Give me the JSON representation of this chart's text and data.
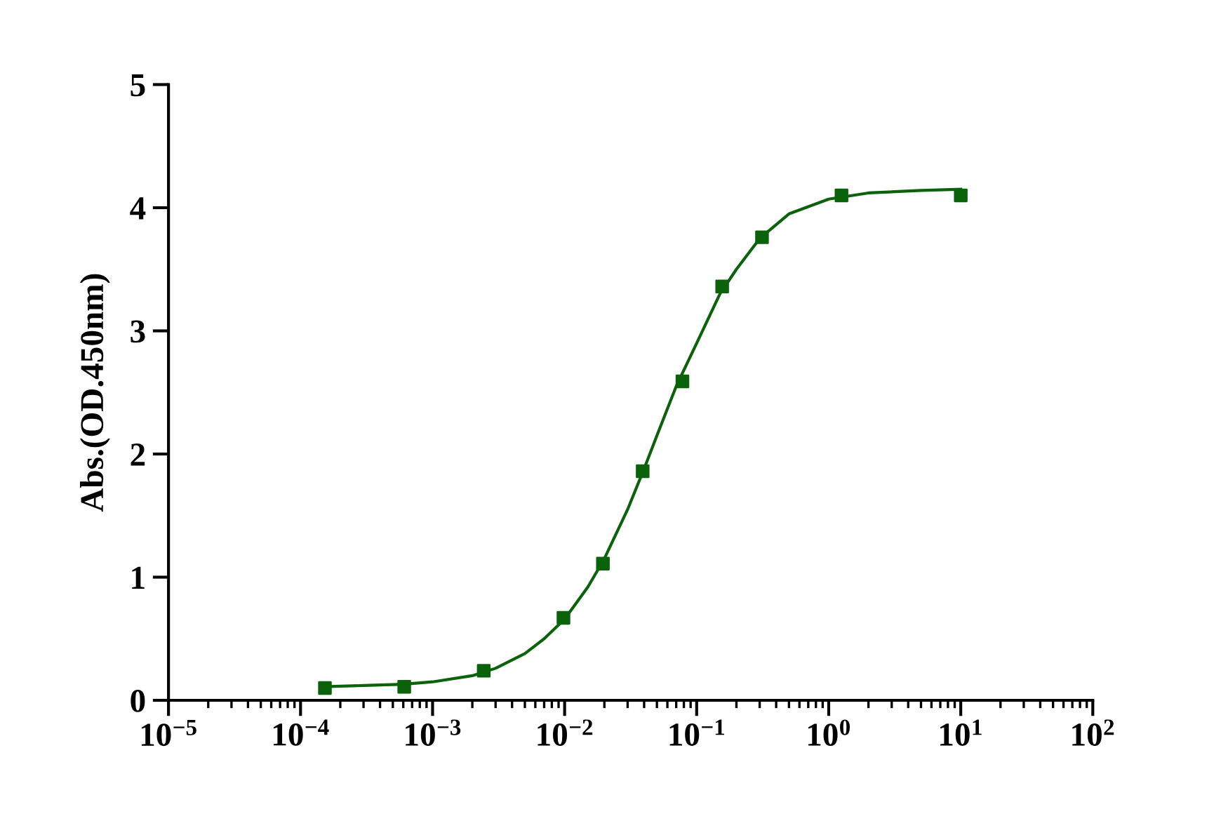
{
  "chart_data": {
    "type": "scatter",
    "ylabel": "Abs.(OD.450nm)",
    "log": "x",
    "grid": false,
    "xlim": [
      1e-05,
      100
    ],
    "xticks": [
      {
        "value": 1e-05,
        "label": "10$^{−5}$"
      },
      {
        "value": 0.0001,
        "label": "10$^{−4}$"
      },
      {
        "value": 0.001,
        "label": "10$^{−3}$"
      },
      {
        "value": 0.01,
        "label": "10$^{−2}$"
      },
      {
        "value": 0.1,
        "label": "10$^{−1}$"
      },
      {
        "value": 1,
        "label": "10$^{0}$"
      },
      {
        "value": 10,
        "label": "10$^{1}$"
      },
      {
        "value": 100,
        "label": "10$^{2}$"
      }
    ],
    "ylim": [
      0,
      5
    ],
    "yticks": [
      0,
      1,
      2,
      3,
      4,
      5
    ],
    "series": [
      {
        "marker": "square",
        "color": "#0a620a",
        "x": [
          0.000153,
          0.00061,
          0.00244,
          0.0098,
          0.0195,
          0.039,
          0.078,
          0.156,
          0.3125,
          1.25,
          10
        ],
        "values": [
          0.1,
          0.11,
          0.24,
          0.67,
          1.11,
          1.86,
          2.59,
          3.36,
          3.76,
          4.1,
          4.1
        ]
      },
      {
        "type": "line",
        "marker": "none",
        "color": "#0a620a",
        "x": [
          0.00015,
          0.0003,
          0.0006,
          0.001,
          0.002,
          0.003,
          0.005,
          0.007,
          0.01,
          0.015,
          0.02,
          0.03,
          0.04,
          0.05,
          0.07,
          0.1,
          0.15,
          0.2,
          0.3,
          0.5,
          1,
          2,
          5,
          10
        ],
        "values": [
          0.11,
          0.12,
          0.13,
          0.15,
          0.2,
          0.26,
          0.38,
          0.5,
          0.66,
          0.92,
          1.15,
          1.55,
          1.88,
          2.15,
          2.55,
          2.9,
          3.3,
          3.5,
          3.75,
          3.95,
          4.07,
          4.12,
          4.14,
          4.15
        ]
      }
    ]
  }
}
